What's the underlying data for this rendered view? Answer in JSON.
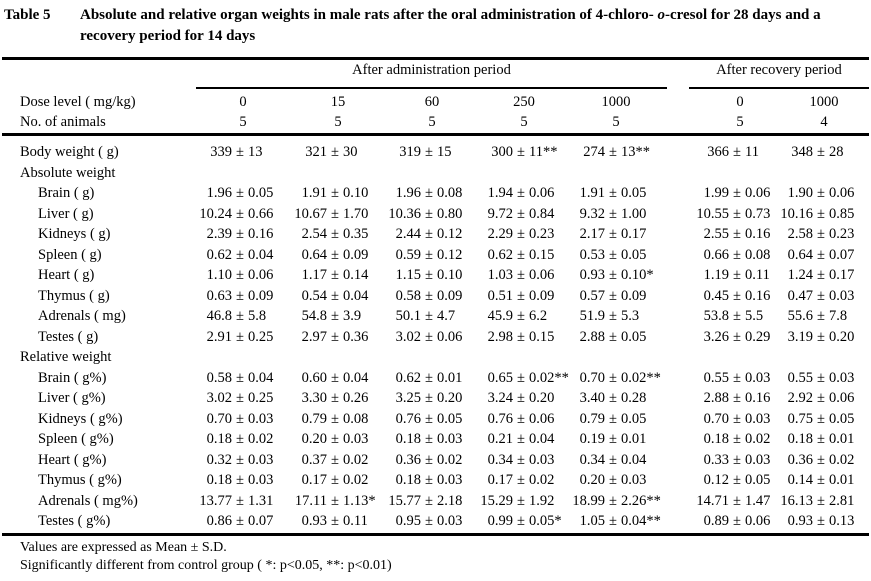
{
  "title": {
    "tag": "Table 5",
    "pre": "Absolute and relative organ weights in male rats after the oral administration of 4-chloro- ",
    "em": "o",
    "post": "-cresol for 28 days and a recovery period for 14 days"
  },
  "pm_symbol": "±",
  "header": {
    "admin_group": "After administration period",
    "recovery_group": "After recovery period",
    "dose_row_label": "Dose level ( mg/kg)",
    "animals_row_label": "No. of animals",
    "admin_doses": [
      "0",
      "15",
      "60",
      "250",
      "1000"
    ],
    "recovery_doses": [
      "0",
      "1000"
    ],
    "admin_animals": [
      "5",
      "5",
      "5",
      "5",
      "5"
    ],
    "recovery_animals": [
      "5",
      "4"
    ]
  },
  "rows": [
    {
      "label": "Body weight ( g)",
      "indent": 0,
      "cells": [
        [
          "339",
          "13",
          ""
        ],
        [
          "321",
          "30",
          ""
        ],
        [
          "319",
          "15",
          ""
        ],
        [
          "300",
          "11",
          "**"
        ],
        [
          "274",
          "13",
          "**"
        ],
        [
          "366",
          "11",
          ""
        ],
        [
          "348",
          "28",
          ""
        ]
      ]
    },
    {
      "label": "Absolute weight",
      "indent": 0,
      "cells": null
    },
    {
      "label": "Brain ( g)",
      "indent": 1,
      "cells": [
        [
          "1.96",
          "0.05",
          ""
        ],
        [
          "1.91",
          "0.10",
          ""
        ],
        [
          "1.96",
          "0.08",
          ""
        ],
        [
          "1.94",
          "0.06",
          ""
        ],
        [
          "1.91",
          "0.05",
          ""
        ],
        [
          "1.99",
          "0.06",
          ""
        ],
        [
          "1.90",
          "0.06",
          ""
        ]
      ]
    },
    {
      "label": "Liver ( g)",
      "indent": 1,
      "cells": [
        [
          "10.24",
          "0.66",
          ""
        ],
        [
          "10.67",
          "1.70",
          ""
        ],
        [
          "10.36",
          "0.80",
          ""
        ],
        [
          "9.72",
          "0.84",
          ""
        ],
        [
          "9.32",
          "1.00",
          ""
        ],
        [
          "10.55",
          "0.73",
          ""
        ],
        [
          "10.16",
          "0.85",
          ""
        ]
      ]
    },
    {
      "label": "Kidneys ( g)",
      "indent": 1,
      "cells": [
        [
          "2.39",
          "0.16",
          ""
        ],
        [
          "2.54",
          "0.35",
          ""
        ],
        [
          "2.44",
          "0.12",
          ""
        ],
        [
          "2.29",
          "0.23",
          ""
        ],
        [
          "2.17",
          "0.17",
          ""
        ],
        [
          "2.55",
          "0.16",
          ""
        ],
        [
          "2.58",
          "0.23",
          ""
        ]
      ]
    },
    {
      "label": "Spleen ( g)",
      "indent": 1,
      "cells": [
        [
          "0.62",
          "0.04",
          ""
        ],
        [
          "0.64",
          "0.09",
          ""
        ],
        [
          "0.59",
          "0.12",
          ""
        ],
        [
          "0.62",
          "0.15",
          ""
        ],
        [
          "0.53",
          "0.05",
          ""
        ],
        [
          "0.66",
          "0.08",
          ""
        ],
        [
          "0.64",
          "0.07",
          ""
        ]
      ]
    },
    {
      "label": "Heart ( g)",
      "indent": 1,
      "cells": [
        [
          "1.10",
          "0.06",
          ""
        ],
        [
          "1.17",
          "0.14",
          ""
        ],
        [
          "1.15",
          "0.10",
          ""
        ],
        [
          "1.03",
          "0.06",
          ""
        ],
        [
          "0.93",
          "0.10",
          "*"
        ],
        [
          "1.19",
          "0.11",
          ""
        ],
        [
          "1.24",
          "0.17",
          ""
        ]
      ]
    },
    {
      "label": "Thymus ( g)",
      "indent": 1,
      "cells": [
        [
          "0.63",
          "0.09",
          ""
        ],
        [
          "0.54",
          "0.04",
          ""
        ],
        [
          "0.58",
          "0.09",
          ""
        ],
        [
          "0.51",
          "0.09",
          ""
        ],
        [
          "0.57",
          "0.09",
          ""
        ],
        [
          "0.45",
          "0.16",
          ""
        ],
        [
          "0.47",
          "0.03",
          ""
        ]
      ]
    },
    {
      "label": "Adrenals ( mg)",
      "indent": 1,
      "cells": [
        [
          "46.8",
          "5.8",
          ""
        ],
        [
          "54.8",
          "3.9",
          ""
        ],
        [
          "50.1",
          "4.7",
          ""
        ],
        [
          "45.9",
          "6.2",
          ""
        ],
        [
          "51.9",
          "5.3",
          ""
        ],
        [
          "53.8",
          "5.5",
          ""
        ],
        [
          "55.6",
          "7.8",
          ""
        ]
      ]
    },
    {
      "label": "Testes ( g)",
      "indent": 1,
      "cells": [
        [
          "2.91",
          "0.25",
          ""
        ],
        [
          "2.97",
          "0.36",
          ""
        ],
        [
          "3.02",
          "0.06",
          ""
        ],
        [
          "2.98",
          "0.15",
          ""
        ],
        [
          "2.88",
          "0.05",
          ""
        ],
        [
          "3.26",
          "0.29",
          ""
        ],
        [
          "3.19",
          "0.20",
          ""
        ]
      ]
    },
    {
      "label": "Relative weight",
      "indent": 0,
      "cells": null
    },
    {
      "label": "Brain ( g%)",
      "indent": 1,
      "cells": [
        [
          "0.58",
          "0.04",
          ""
        ],
        [
          "0.60",
          "0.04",
          ""
        ],
        [
          "0.62",
          "0.01",
          ""
        ],
        [
          "0.65",
          "0.02",
          "**"
        ],
        [
          "0.70",
          "0.02",
          "**"
        ],
        [
          "0.55",
          "0.03",
          ""
        ],
        [
          "0.55",
          "0.03",
          ""
        ]
      ]
    },
    {
      "label": "Liver ( g%)",
      "indent": 1,
      "cells": [
        [
          "3.02",
          "0.25",
          ""
        ],
        [
          "3.30",
          "0.26",
          ""
        ],
        [
          "3.25",
          "0.20",
          ""
        ],
        [
          "3.24",
          "0.20",
          ""
        ],
        [
          "3.40",
          "0.28",
          ""
        ],
        [
          "2.88",
          "0.16",
          ""
        ],
        [
          "2.92",
          "0.06",
          ""
        ]
      ]
    },
    {
      "label": "Kidneys ( g%)",
      "indent": 1,
      "cells": [
        [
          "0.70",
          "0.03",
          ""
        ],
        [
          "0.79",
          "0.08",
          ""
        ],
        [
          "0.76",
          "0.05",
          ""
        ],
        [
          "0.76",
          "0.06",
          ""
        ],
        [
          "0.79",
          "0.05",
          ""
        ],
        [
          "0.70",
          "0.03",
          ""
        ],
        [
          "0.75",
          "0.05",
          ""
        ]
      ]
    },
    {
      "label": "Spleen ( g%)",
      "indent": 1,
      "cells": [
        [
          "0.18",
          "0.02",
          ""
        ],
        [
          "0.20",
          "0.03",
          ""
        ],
        [
          "0.18",
          "0.03",
          ""
        ],
        [
          "0.21",
          "0.04",
          ""
        ],
        [
          "0.19",
          "0.01",
          ""
        ],
        [
          "0.18",
          "0.02",
          ""
        ],
        [
          "0.18",
          "0.01",
          ""
        ]
      ]
    },
    {
      "label": "Heart ( g%)",
      "indent": 1,
      "cells": [
        [
          "0.32",
          "0.03",
          ""
        ],
        [
          "0.37",
          "0.02",
          ""
        ],
        [
          "0.36",
          "0.02",
          ""
        ],
        [
          "0.34",
          "0.03",
          ""
        ],
        [
          "0.34",
          "0.04",
          ""
        ],
        [
          "0.33",
          "0.03",
          ""
        ],
        [
          "0.36",
          "0.02",
          ""
        ]
      ]
    },
    {
      "label": "Thymus ( g%)",
      "indent": 1,
      "cells": [
        [
          "0.18",
          "0.03",
          ""
        ],
        [
          "0.17",
          "0.02",
          ""
        ],
        [
          "0.18",
          "0.03",
          ""
        ],
        [
          "0.17",
          "0.02",
          ""
        ],
        [
          "0.20",
          "0.03",
          ""
        ],
        [
          "0.12",
          "0.05",
          ""
        ],
        [
          "0.14",
          "0.01",
          ""
        ]
      ]
    },
    {
      "label": "Adrenals ( mg%)",
      "indent": 1,
      "cells": [
        [
          "13.77",
          "1.31",
          ""
        ],
        [
          "17.11",
          "1.13",
          "*"
        ],
        [
          "15.77",
          "2.18",
          ""
        ],
        [
          "15.29",
          "1.92",
          ""
        ],
        [
          "18.99",
          "2.26",
          "**"
        ],
        [
          "14.71",
          "1.47",
          ""
        ],
        [
          "16.13",
          "2.81",
          ""
        ]
      ]
    },
    {
      "label": "Testes ( g%)",
      "indent": 1,
      "cells": [
        [
          "0.86",
          "0.07",
          ""
        ],
        [
          "0.93",
          "0.11",
          ""
        ],
        [
          "0.95",
          "0.03",
          ""
        ],
        [
          "0.99",
          "0.05",
          "*"
        ],
        [
          "1.05",
          "0.04",
          "**"
        ],
        [
          "0.89",
          "0.06",
          ""
        ],
        [
          "0.93",
          "0.13",
          ""
        ]
      ]
    }
  ],
  "footnotes": {
    "line1": "Values are expressed as Mean ± S.D.",
    "line2": "Significantly different from control group ( *: p<0.05, **: p<0.01)"
  }
}
